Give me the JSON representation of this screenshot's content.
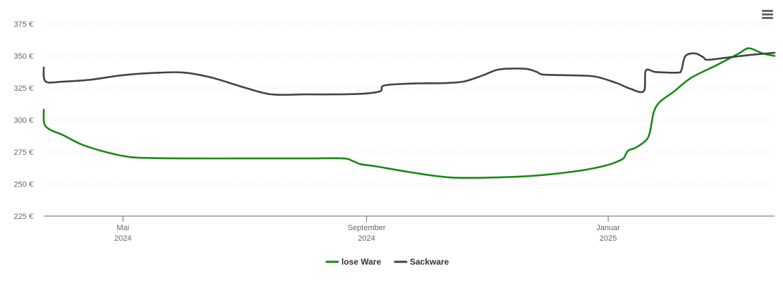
{
  "menu": {
    "icon": "hamburger-menu-icon"
  },
  "colors": {
    "lose": "#1a8a14",
    "sack": "#444444",
    "grid": "#e6e6e6",
    "axis": "#666666"
  },
  "chart_data": {
    "type": "line",
    "title": "",
    "xlabel": "",
    "ylabel": "",
    "x_range": [
      "2024-03-22",
      "2025-03-26"
    ],
    "ylim": [
      225,
      375
    ],
    "y_ticks": [
      {
        "value": 225,
        "label": "225 €"
      },
      {
        "value": 250,
        "label": "250 €"
      },
      {
        "value": 275,
        "label": "275 €"
      },
      {
        "value": 300,
        "label": "300 €"
      },
      {
        "value": 325,
        "label": "325 €"
      },
      {
        "value": 350,
        "label": "350 €"
      },
      {
        "value": 375,
        "label": "375 €"
      }
    ],
    "x_ticks": [
      {
        "date": "2024-05-01",
        "label": "Mai",
        "sublabel": "2024"
      },
      {
        "date": "2024-09-01",
        "label": "September",
        "sublabel": "2024"
      },
      {
        "date": "2025-01-01",
        "label": "Januar",
        "sublabel": "2025"
      }
    ],
    "grid": true,
    "legend_position": "bottom-center",
    "series": [
      {
        "name": "lose Ware",
        "color": "#1a8a14",
        "points": [
          [
            "2024-03-22",
            308
          ],
          [
            "2024-03-23",
            295
          ],
          [
            "2024-04-01",
            288
          ],
          [
            "2024-04-10",
            281
          ],
          [
            "2024-04-20",
            276
          ],
          [
            "2024-05-01",
            272
          ],
          [
            "2024-05-10",
            270.5
          ],
          [
            "2024-06-01",
            270
          ],
          [
            "2024-07-01",
            270
          ],
          [
            "2024-08-01",
            270
          ],
          [
            "2024-08-20",
            270
          ],
          [
            "2024-08-25",
            268
          ],
          [
            "2024-08-29",
            265.5
          ],
          [
            "2024-09-05",
            264
          ],
          [
            "2024-09-20",
            260
          ],
          [
            "2024-10-05",
            256.5
          ],
          [
            "2024-10-15",
            255
          ],
          [
            "2024-11-01",
            255
          ],
          [
            "2024-11-20",
            256
          ],
          [
            "2024-12-05",
            258
          ],
          [
            "2024-12-20",
            261
          ],
          [
            "2025-01-01",
            265
          ],
          [
            "2025-01-07",
            268.5
          ],
          [
            "2025-01-09",
            270.5
          ],
          [
            "2025-01-11",
            276
          ],
          [
            "2025-01-15",
            278.5
          ],
          [
            "2025-01-20",
            284
          ],
          [
            "2025-01-22",
            290
          ],
          [
            "2025-01-24",
            306
          ],
          [
            "2025-01-27",
            314
          ],
          [
            "2025-02-03",
            322
          ],
          [
            "2025-02-12",
            333
          ],
          [
            "2025-02-25",
            343
          ],
          [
            "2025-03-08",
            352
          ],
          [
            "2025-03-13",
            356
          ],
          [
            "2025-03-20",
            352
          ],
          [
            "2025-03-26",
            350
          ]
        ]
      },
      {
        "name": "Sackware",
        "color": "#444444",
        "points": [
          [
            "2024-03-22",
            341
          ],
          [
            "2024-03-23",
            330
          ],
          [
            "2024-04-01",
            330
          ],
          [
            "2024-04-15",
            331.5
          ],
          [
            "2024-05-01",
            335
          ],
          [
            "2024-05-20",
            337
          ],
          [
            "2024-06-01",
            337
          ],
          [
            "2024-06-15",
            333
          ],
          [
            "2024-07-01",
            325.5
          ],
          [
            "2024-07-15",
            320
          ],
          [
            "2024-08-01",
            320
          ],
          [
            "2024-08-15",
            320
          ],
          [
            "2024-08-30",
            320.5
          ],
          [
            "2024-09-08",
            322.5
          ],
          [
            "2024-09-10",
            327
          ],
          [
            "2024-09-25",
            328.5
          ],
          [
            "2024-10-10",
            328.8
          ],
          [
            "2024-10-20",
            330
          ],
          [
            "2024-10-30",
            335
          ],
          [
            "2024-11-07",
            339.5
          ],
          [
            "2024-11-20",
            340
          ],
          [
            "2024-11-26",
            337.5
          ],
          [
            "2024-11-29",
            335.5
          ],
          [
            "2024-12-10",
            335
          ],
          [
            "2024-12-25",
            334
          ],
          [
            "2025-01-05",
            329
          ],
          [
            "2025-01-12",
            324.5
          ],
          [
            "2025-01-19",
            322.5
          ],
          [
            "2025-01-20",
            338.5
          ],
          [
            "2025-01-25",
            337.5
          ],
          [
            "2025-02-05",
            337
          ],
          [
            "2025-02-07",
            339
          ],
          [
            "2025-02-09",
            350
          ],
          [
            "2025-02-14",
            352
          ],
          [
            "2025-02-18",
            349
          ],
          [
            "2025-02-20",
            347
          ],
          [
            "2025-03-01",
            348.5
          ],
          [
            "2025-03-15",
            351
          ],
          [
            "2025-03-26",
            352.5
          ]
        ]
      }
    ]
  }
}
